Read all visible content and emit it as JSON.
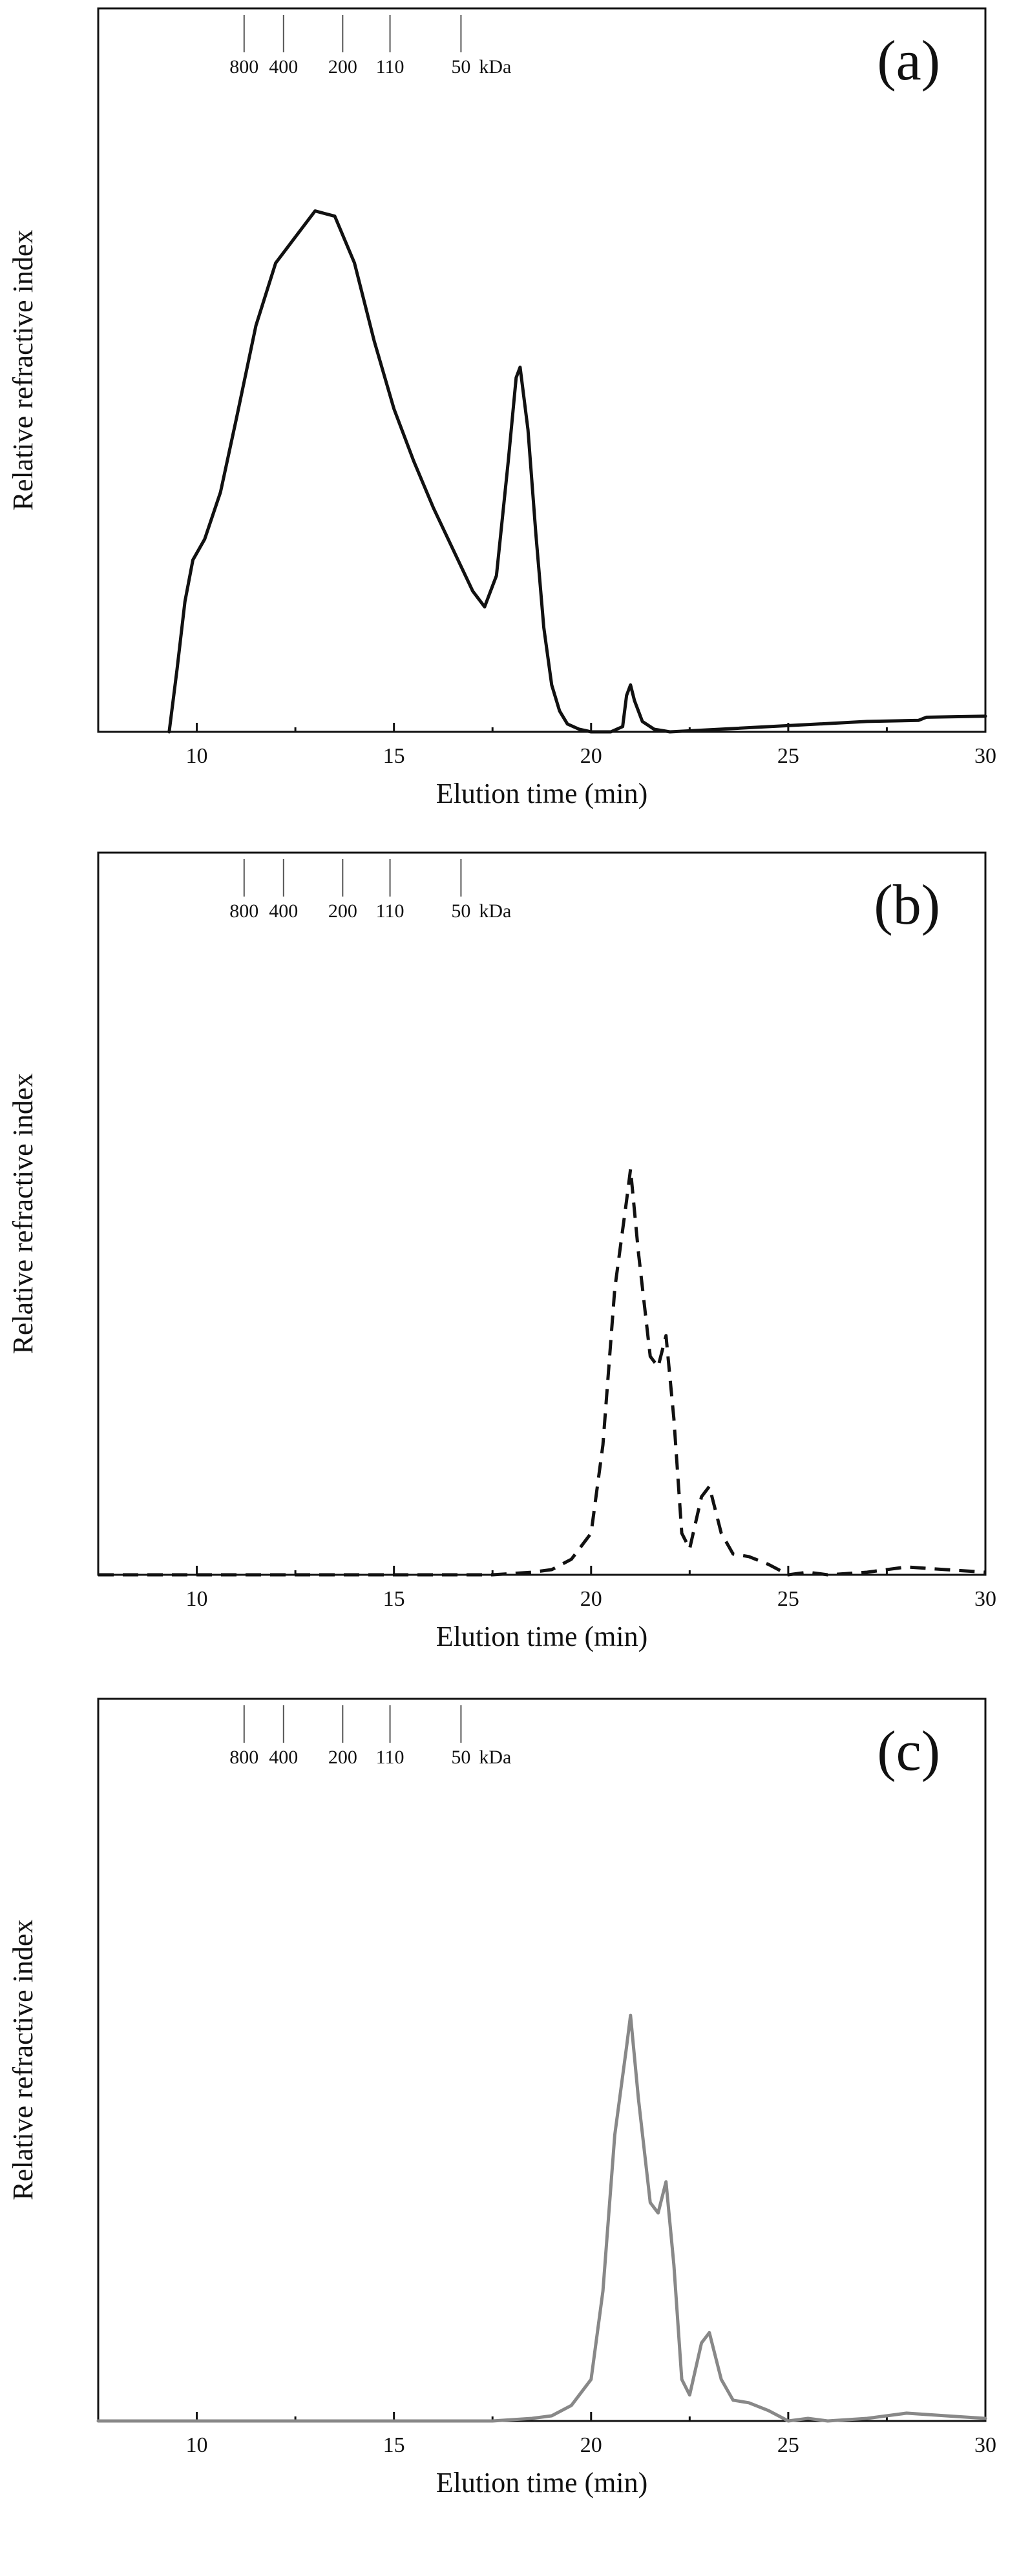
{
  "chart_data": [
    {
      "type": "line",
      "panel_label": "(a)",
      "xlabel": "Elution time (min)",
      "ylabel": "Relative refractive index",
      "xlim": [
        7.5,
        30
      ],
      "ylim": [
        0,
        1.0
      ],
      "xticks": [
        10,
        15,
        20,
        25,
        30
      ],
      "line_style": "solid",
      "line_color": "#111111",
      "markers": {
        "positions": [
          11.2,
          12.2,
          13.7,
          14.9,
          16.7
        ],
        "labels": [
          "800",
          "400",
          "200",
          "110",
          "50"
        ],
        "unit": "kDa"
      },
      "series": [
        {
          "x": [
            9.3,
            9.5,
            9.7,
            9.9,
            10.2,
            10.6,
            11.0,
            11.5,
            12.0,
            12.5,
            13.0,
            13.5,
            14.0,
            14.5,
            15.0,
            15.5,
            16.0,
            16.5,
            17.0,
            17.3,
            17.6,
            17.9,
            18.1,
            18.2,
            18.4,
            18.6,
            18.8,
            19.0,
            19.2,
            19.4,
            19.7,
            20.0,
            20.5,
            20.8,
            20.9,
            21.0,
            21.1,
            21.3,
            21.6,
            22.0,
            27.0,
            28.3,
            28.5,
            30.0
          ],
          "y": [
            0.0,
            0.12,
            0.25,
            0.33,
            0.37,
            0.46,
            0.6,
            0.78,
            0.9,
            0.95,
            1.0,
            0.99,
            0.9,
            0.75,
            0.62,
            0.52,
            0.43,
            0.35,
            0.27,
            0.24,
            0.3,
            0.52,
            0.68,
            0.7,
            0.58,
            0.38,
            0.2,
            0.09,
            0.04,
            0.015,
            0.005,
            0.0,
            0.0,
            0.01,
            0.07,
            0.09,
            0.06,
            0.02,
            0.005,
            0.0,
            0.02,
            0.022,
            0.028,
            0.03
          ]
        }
      ]
    },
    {
      "type": "line",
      "panel_label": "(b)",
      "xlabel": "Elution time (min)",
      "ylabel": "Relative refractive index",
      "xlim": [
        7.5,
        30
      ],
      "ylim": [
        0,
        1.0
      ],
      "xticks": [
        10,
        15,
        20,
        25,
        30
      ],
      "line_style": "dashed",
      "line_color": "#111111",
      "markers": {
        "positions": [
          11.2,
          12.2,
          13.7,
          14.9,
          16.7
        ],
        "labels": [
          "800",
          "400",
          "200",
          "110",
          "50"
        ],
        "unit": "kDa"
      },
      "series": [
        {
          "x": [
            7.5,
            17.5,
            18.5,
            19.0,
            19.5,
            20.0,
            20.3,
            20.6,
            20.9,
            21.0,
            21.2,
            21.5,
            21.7,
            21.9,
            22.1,
            22.3,
            22.5,
            22.8,
            23.0,
            23.3,
            23.6,
            24.0,
            24.5,
            25.0,
            25.5,
            26.0,
            27.0,
            28.0,
            29.0,
            30.0
          ],
          "y": [
            0.0,
            0.0,
            0.005,
            0.01,
            0.03,
            0.08,
            0.25,
            0.55,
            0.72,
            0.78,
            0.62,
            0.42,
            0.4,
            0.46,
            0.3,
            0.08,
            0.05,
            0.15,
            0.17,
            0.08,
            0.04,
            0.035,
            0.02,
            0.0,
            0.005,
            0.0,
            0.005,
            0.015,
            0.01,
            0.005
          ]
        }
      ]
    },
    {
      "type": "line",
      "panel_label": "(c)",
      "xlabel": "Elution time (min)",
      "ylabel": "Relative refractive index",
      "xlim": [
        7.5,
        30
      ],
      "ylim": [
        0,
        1.0
      ],
      "xticks": [
        10,
        15,
        20,
        25,
        30
      ],
      "line_style": "solid",
      "line_color": "#888888",
      "markers": {
        "positions": [
          11.2,
          12.2,
          13.7,
          14.9,
          16.7
        ],
        "labels": [
          "800",
          "400",
          "200",
          "110",
          "50"
        ],
        "unit": "kDa"
      },
      "series": [
        {
          "x": [
            7.5,
            17.5,
            18.5,
            19.0,
            19.5,
            20.0,
            20.3,
            20.6,
            20.9,
            21.0,
            21.2,
            21.5,
            21.7,
            21.9,
            22.1,
            22.3,
            22.5,
            22.8,
            23.0,
            23.3,
            23.6,
            24.0,
            24.5,
            25.0,
            25.5,
            26.0,
            27.0,
            28.0,
            29.0,
            30.0
          ],
          "y": [
            0.0,
            0.0,
            0.005,
            0.01,
            0.03,
            0.08,
            0.25,
            0.55,
            0.72,
            0.78,
            0.62,
            0.42,
            0.4,
            0.46,
            0.3,
            0.08,
            0.05,
            0.15,
            0.17,
            0.08,
            0.04,
            0.035,
            0.02,
            0.0,
            0.005,
            0.0,
            0.005,
            0.015,
            0.01,
            0.005
          ]
        }
      ]
    }
  ]
}
